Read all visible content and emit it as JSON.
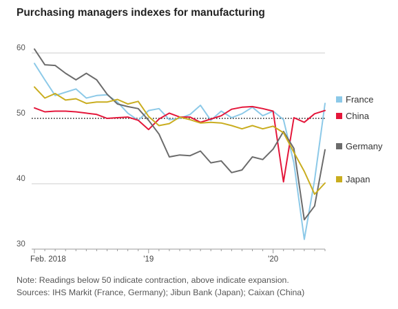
{
  "title": "Purchasing managers indexes for manufacturing",
  "notes": [
    "Note: Readings below 50 indicate contraction, above indicate expansion.",
    "Sources: IHS Markit (France, Germany); Jibun Bank (Japan); Caixan (China)"
  ],
  "chart_data": {
    "type": "line",
    "title": "Purchasing managers indexes for manufacturing",
    "xlabel": "",
    "ylabel": "",
    "x_tick_labels": [
      {
        "label": "Feb. 2018",
        "index": 0
      },
      {
        "label": "'19",
        "index": 11
      },
      {
        "label": "'20",
        "index": 23
      }
    ],
    "y_ticks": [
      30,
      40,
      50,
      60
    ],
    "ylim": [
      30,
      62
    ],
    "reference_line": 50,
    "legend_position": "right",
    "x": [
      "2018-02",
      "2018-03",
      "2018-04",
      "2018-05",
      "2018-06",
      "2018-07",
      "2018-08",
      "2018-09",
      "2018-10",
      "2018-11",
      "2018-12",
      "2019-01",
      "2019-02",
      "2019-03",
      "2019-04",
      "2019-05",
      "2019-06",
      "2019-07",
      "2019-08",
      "2019-09",
      "2019-10",
      "2019-11",
      "2019-12",
      "2020-01",
      "2020-02",
      "2020-03",
      "2020-04",
      "2020-05",
      "2020-06"
    ],
    "series": [
      {
        "name": "France",
        "color": "#8cc9e8",
        "values": [
          58.4,
          55.9,
          53.5,
          54.0,
          54.5,
          53.1,
          53.5,
          53.6,
          52.5,
          50.8,
          49.7,
          51.2,
          51.5,
          49.8,
          50.0,
          50.6,
          52.0,
          49.7,
          51.1,
          50.1,
          50.7,
          51.7,
          50.4,
          51.1,
          49.8,
          43.2,
          31.5,
          40.6,
          52.3
        ]
      },
      {
        "name": "China",
        "color": "#e4163a",
        "values": [
          51.6,
          51.0,
          51.1,
          51.1,
          51.0,
          50.8,
          50.6,
          50.0,
          50.1,
          50.2,
          49.7,
          48.3,
          49.9,
          50.8,
          50.2,
          50.2,
          49.4,
          49.9,
          50.4,
          51.4,
          51.7,
          51.8,
          51.5,
          51.1,
          40.3,
          50.1,
          49.4,
          50.7,
          51.2
        ]
      },
      {
        "name": "Germany",
        "color": "#6b6b6b",
        "values": [
          60.6,
          58.2,
          58.1,
          56.9,
          55.9,
          56.9,
          55.9,
          53.7,
          52.2,
          51.8,
          51.5,
          49.7,
          47.6,
          44.1,
          44.4,
          44.3,
          45.0,
          43.2,
          43.5,
          41.7,
          42.1,
          44.1,
          43.7,
          45.3,
          48.0,
          45.4,
          34.5,
          36.6,
          45.2
        ]
      },
      {
        "name": "Japan",
        "color": "#c9ad1f",
        "values": [
          54.8,
          53.1,
          53.8,
          52.8,
          53.0,
          52.3,
          52.5,
          52.5,
          52.9,
          52.2,
          52.6,
          50.3,
          48.9,
          49.2,
          50.2,
          49.8,
          49.3,
          49.4,
          49.3,
          48.9,
          48.4,
          48.9,
          48.4,
          48.8,
          47.8,
          44.8,
          41.9,
          38.4,
          40.1
        ]
      }
    ]
  }
}
